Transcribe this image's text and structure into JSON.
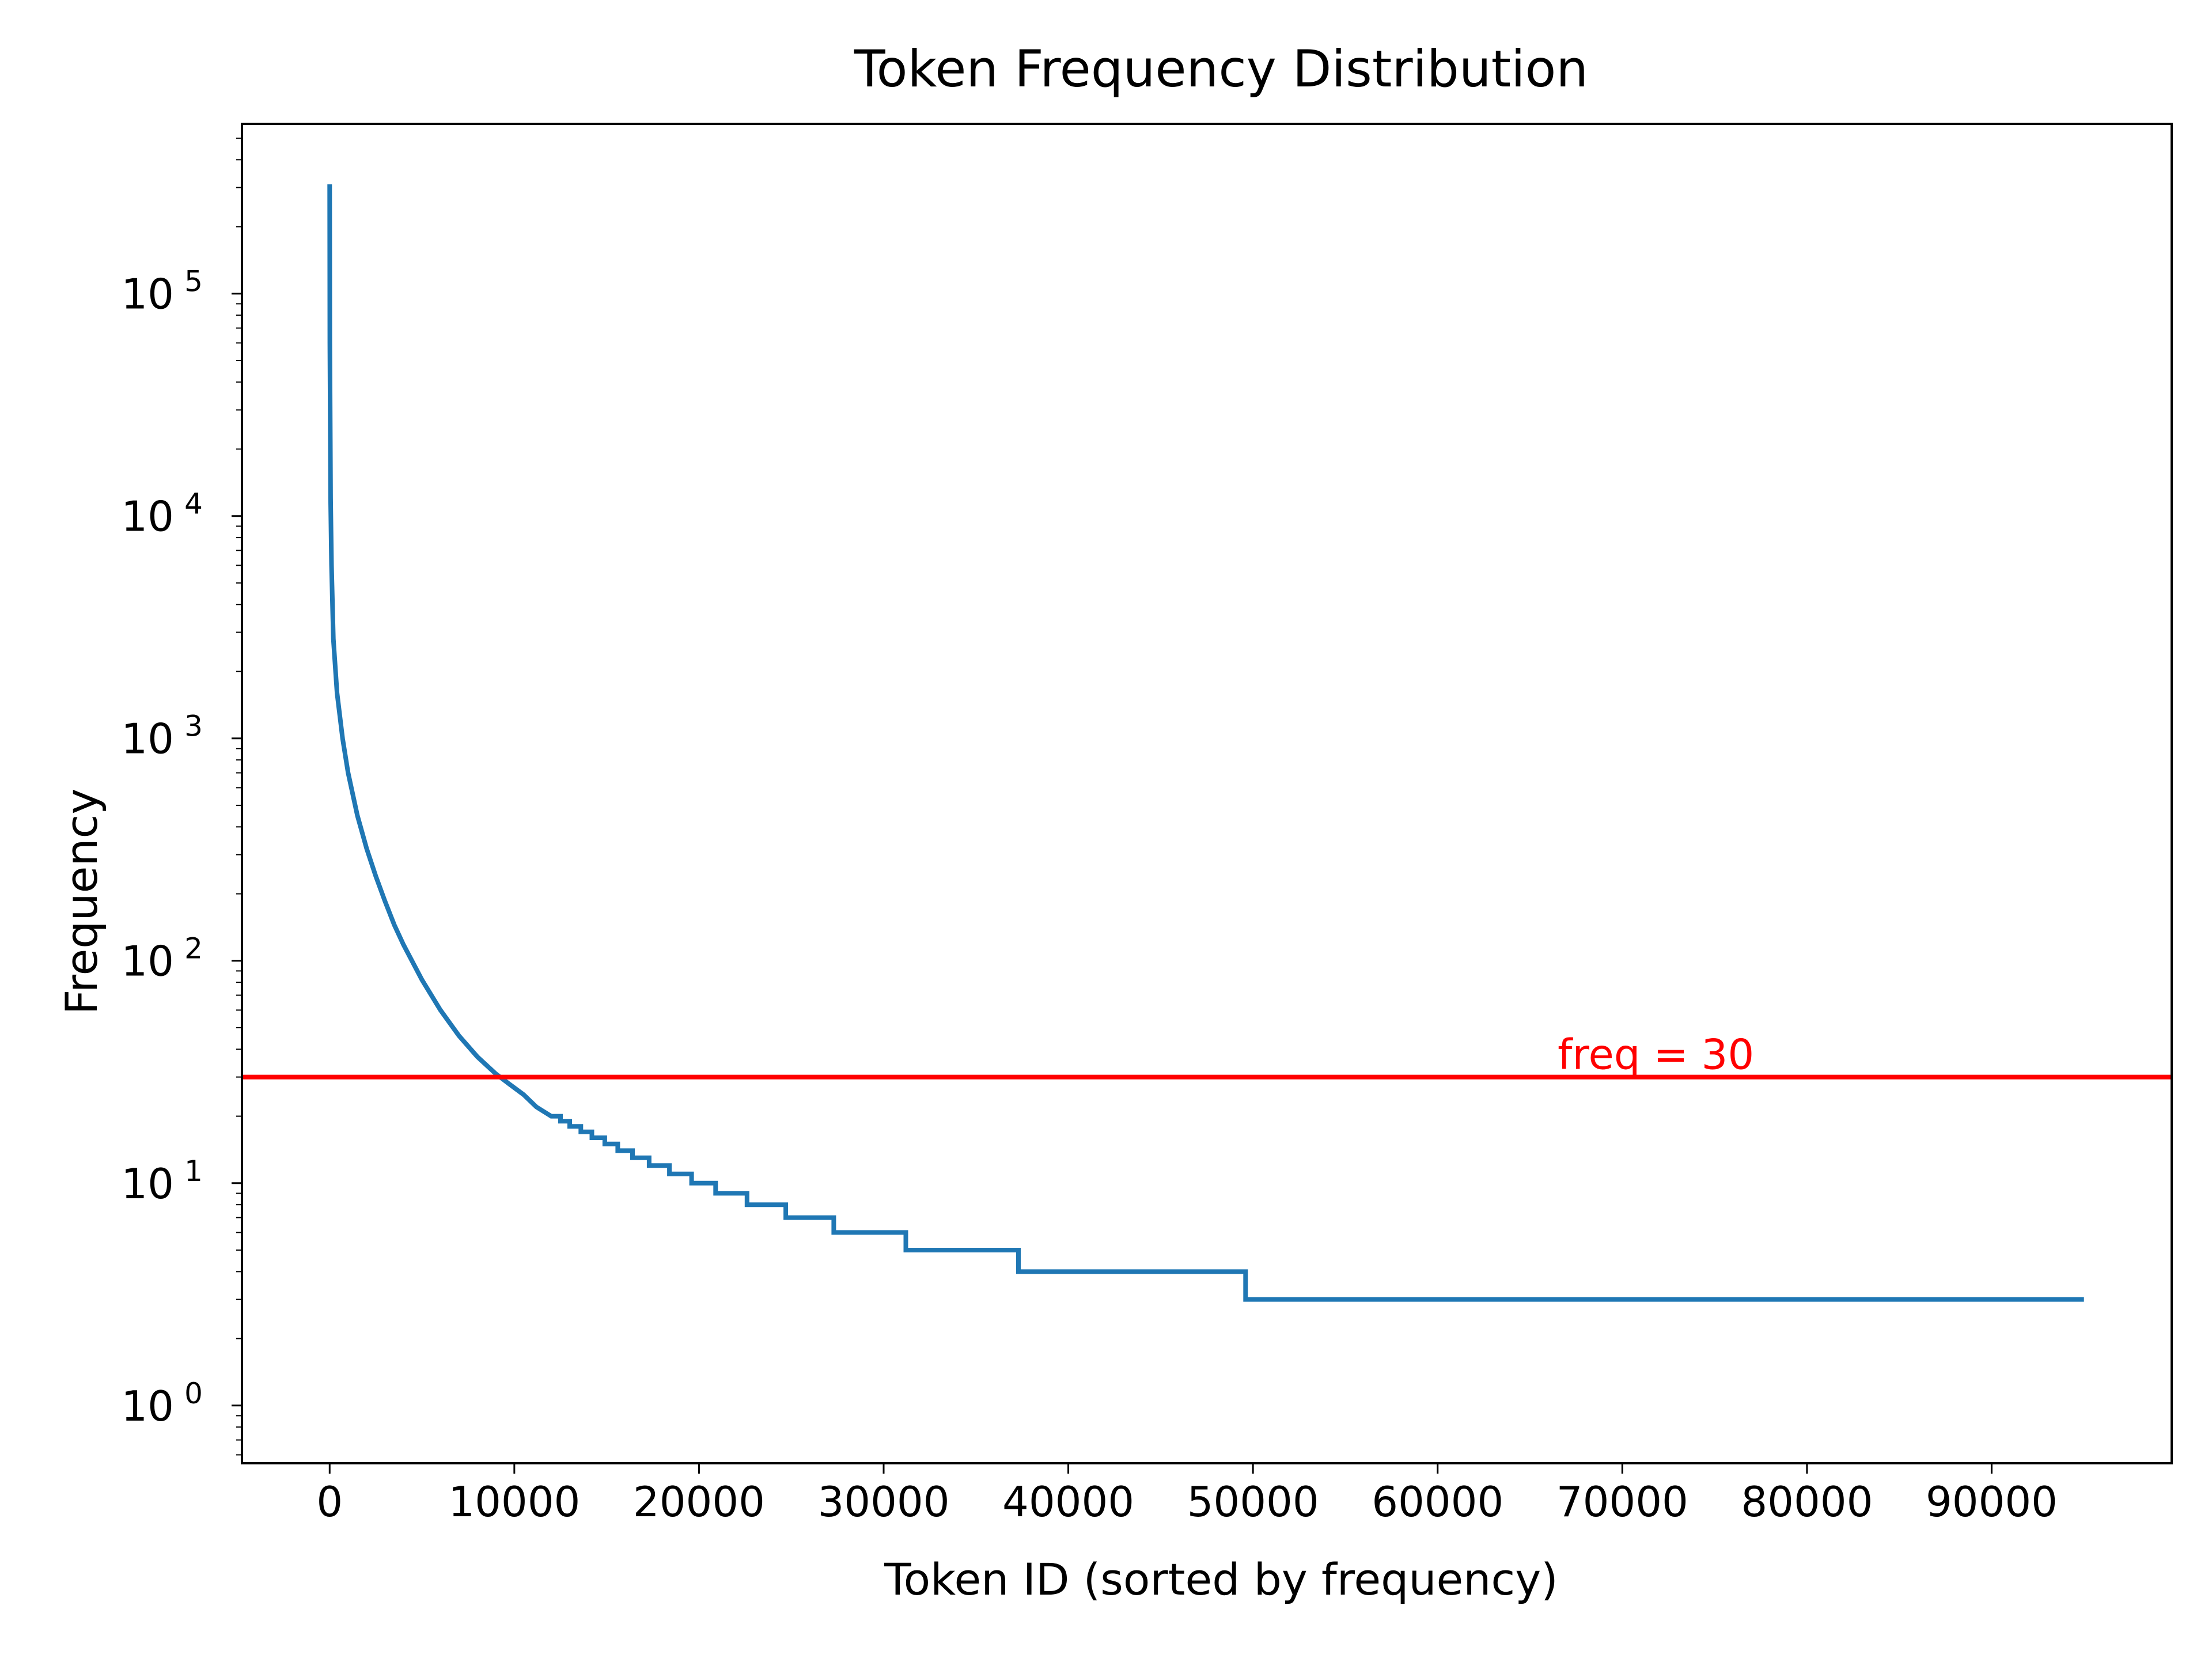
{
  "chart_data": {
    "type": "line",
    "title": "Token Frequency Distribution",
    "xlabel": "Token ID (sorted by frequency)",
    "ylabel": "Frequency",
    "xlim": [
      -4750,
      99750
    ],
    "ylim": [
      0.55,
      580000
    ],
    "y_scale": "log",
    "grid": false,
    "x_ticks": [
      0,
      10000,
      20000,
      30000,
      40000,
      50000,
      60000,
      70000,
      80000,
      90000
    ],
    "y_ticks": [
      {
        "value": 1,
        "base": "10",
        "exp": "0"
      },
      {
        "value": 10,
        "base": "10",
        "exp": "1"
      },
      {
        "value": 100,
        "base": "10",
        "exp": "2"
      },
      {
        "value": 1000,
        "base": "10",
        "exp": "3"
      },
      {
        "value": 10000,
        "base": "10",
        "exp": "4"
      },
      {
        "value": 100000,
        "base": "10",
        "exp": "5"
      }
    ],
    "series": [
      {
        "color": "#1f77b4",
        "x": [
          0,
          10,
          50,
          100,
          200,
          400,
          700,
          1000,
          1500,
          2000,
          2500,
          3000,
          3500,
          4000,
          5000,
          6000,
          7000,
          8000,
          9000,
          9700,
          10500,
          11200,
          12000,
          12500,
          12500,
          13000,
          13000,
          13600,
          13600,
          14200,
          14200,
          14900,
          14900,
          15600,
          15600,
          16400,
          16400,
          17300,
          17300,
          18400,
          18400,
          19600,
          19600,
          20900,
          20900,
          22600,
          22600,
          24700,
          24700,
          27300,
          27300,
          31200,
          31200,
          37300,
          37300,
          49600,
          49600,
          95000
        ],
        "y": [
          310000,
          60000,
          12000,
          6000,
          2800,
          1600,
          1000,
          700,
          450,
          320,
          240,
          185,
          145,
          118,
          82,
          60,
          46,
          37,
          31,
          28,
          25,
          22,
          20,
          20,
          19,
          19,
          18,
          18,
          17,
          17,
          16,
          16,
          15,
          15,
          14,
          14,
          13,
          13,
          12,
          12,
          11,
          11,
          10,
          10,
          9,
          9,
          8,
          8,
          7,
          7,
          6,
          6,
          5,
          5,
          4,
          4,
          3,
          3
        ]
      }
    ],
    "reference_lines": [
      {
        "orientation": "horizontal",
        "y": 30,
        "color": "#ff0000",
        "label": "freq = 30"
      }
    ]
  }
}
